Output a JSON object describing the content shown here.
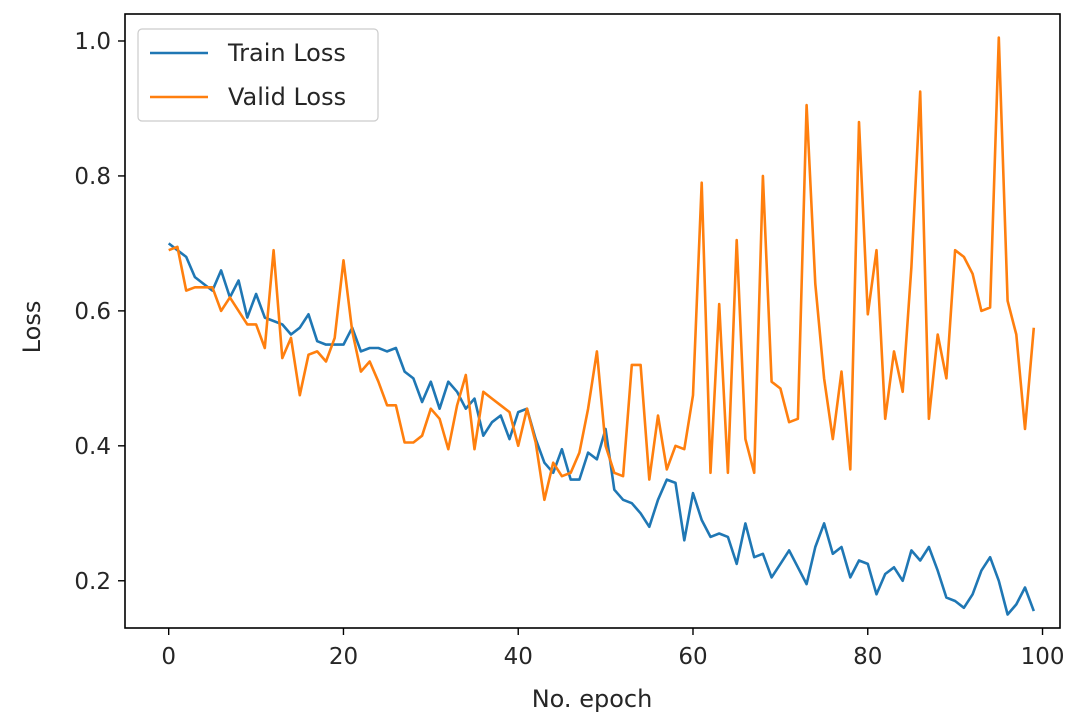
{
  "chart_data": {
    "type": "line",
    "title": "",
    "xlabel": "No. epoch",
    "ylabel": "Loss",
    "xlim": [
      -5,
      102
    ],
    "ylim": [
      0.13,
      1.04
    ],
    "xticks": [
      0,
      20,
      40,
      60,
      80,
      100
    ],
    "yticks": [
      0.2,
      0.4,
      0.6,
      0.8,
      1.0
    ],
    "ytick_labels": [
      "0.2",
      "0.4",
      "0.6",
      "0.8",
      "1.0"
    ],
    "grid": false,
    "legend_position": "top-left",
    "x": [
      0,
      1,
      2,
      3,
      4,
      5,
      6,
      7,
      8,
      9,
      10,
      11,
      12,
      13,
      14,
      15,
      16,
      17,
      18,
      19,
      20,
      21,
      22,
      23,
      24,
      25,
      26,
      27,
      28,
      29,
      30,
      31,
      32,
      33,
      34,
      35,
      36,
      37,
      38,
      39,
      40,
      41,
      42,
      43,
      44,
      45,
      46,
      47,
      48,
      49,
      50,
      51,
      52,
      53,
      54,
      55,
      56,
      57,
      58,
      59,
      60,
      61,
      62,
      63,
      64,
      65,
      66,
      67,
      68,
      69,
      70,
      71,
      72,
      73,
      74,
      75,
      76,
      77,
      78,
      79,
      80,
      81,
      82,
      83,
      84,
      85,
      86,
      87,
      88,
      89,
      90,
      91,
      92,
      93,
      94,
      95,
      96,
      97,
      98,
      99
    ],
    "series": [
      {
        "name": "Train Loss",
        "color": "#1f77b4",
        "values": [
          0.7,
          0.69,
          0.68,
          0.65,
          0.64,
          0.63,
          0.66,
          0.62,
          0.645,
          0.59,
          0.625,
          0.59,
          0.585,
          0.58,
          0.565,
          0.575,
          0.595,
          0.555,
          0.55,
          0.55,
          0.55,
          0.575,
          0.54,
          0.545,
          0.545,
          0.54,
          0.545,
          0.51,
          0.5,
          0.465,
          0.495,
          0.455,
          0.495,
          0.48,
          0.455,
          0.47,
          0.415,
          0.435,
          0.445,
          0.41,
          0.45,
          0.455,
          0.41,
          0.375,
          0.36,
          0.395,
          0.35,
          0.35,
          0.39,
          0.38,
          0.425,
          0.335,
          0.32,
          0.315,
          0.3,
          0.28,
          0.32,
          0.35,
          0.345,
          0.26,
          0.33,
          0.29,
          0.265,
          0.27,
          0.265,
          0.225,
          0.285,
          0.235,
          0.24,
          0.205,
          0.225,
          0.245,
          0.22,
          0.195,
          0.25,
          0.285,
          0.24,
          0.25,
          0.205,
          0.23,
          0.225,
          0.18,
          0.21,
          0.22,
          0.2,
          0.245,
          0.23,
          0.25,
          0.215,
          0.175,
          0.17,
          0.16,
          0.18,
          0.215,
          0.235,
          0.2,
          0.15,
          0.165,
          0.19,
          0.155
        ]
      },
      {
        "name": "Valid Loss",
        "color": "#ff7f0e",
        "values": [
          0.69,
          0.695,
          0.63,
          0.635,
          0.635,
          0.635,
          0.6,
          0.62,
          0.6,
          0.58,
          0.58,
          0.545,
          0.69,
          0.53,
          0.56,
          0.475,
          0.535,
          0.54,
          0.525,
          0.56,
          0.675,
          0.57,
          0.51,
          0.525,
          0.495,
          0.46,
          0.46,
          0.405,
          0.405,
          0.415,
          0.455,
          0.44,
          0.395,
          0.46,
          0.505,
          0.395,
          0.48,
          0.47,
          0.46,
          0.45,
          0.4,
          0.455,
          0.405,
          0.32,
          0.375,
          0.355,
          0.36,
          0.39,
          0.455,
          0.54,
          0.4,
          0.36,
          0.355,
          0.52,
          0.52,
          0.35,
          0.445,
          0.365,
          0.4,
          0.395,
          0.475,
          0.79,
          0.36,
          0.61,
          0.36,
          0.705,
          0.41,
          0.36,
          0.8,
          0.495,
          0.485,
          0.435,
          0.44,
          0.905,
          0.64,
          0.5,
          0.41,
          0.51,
          0.365,
          0.88,
          0.595,
          0.69,
          0.44,
          0.54,
          0.48,
          0.665,
          0.925,
          0.44,
          0.565,
          0.5,
          0.69,
          0.68,
          0.655,
          0.6,
          0.605,
          1.005,
          0.615,
          0.565,
          0.425,
          0.575
        ]
      }
    ]
  }
}
